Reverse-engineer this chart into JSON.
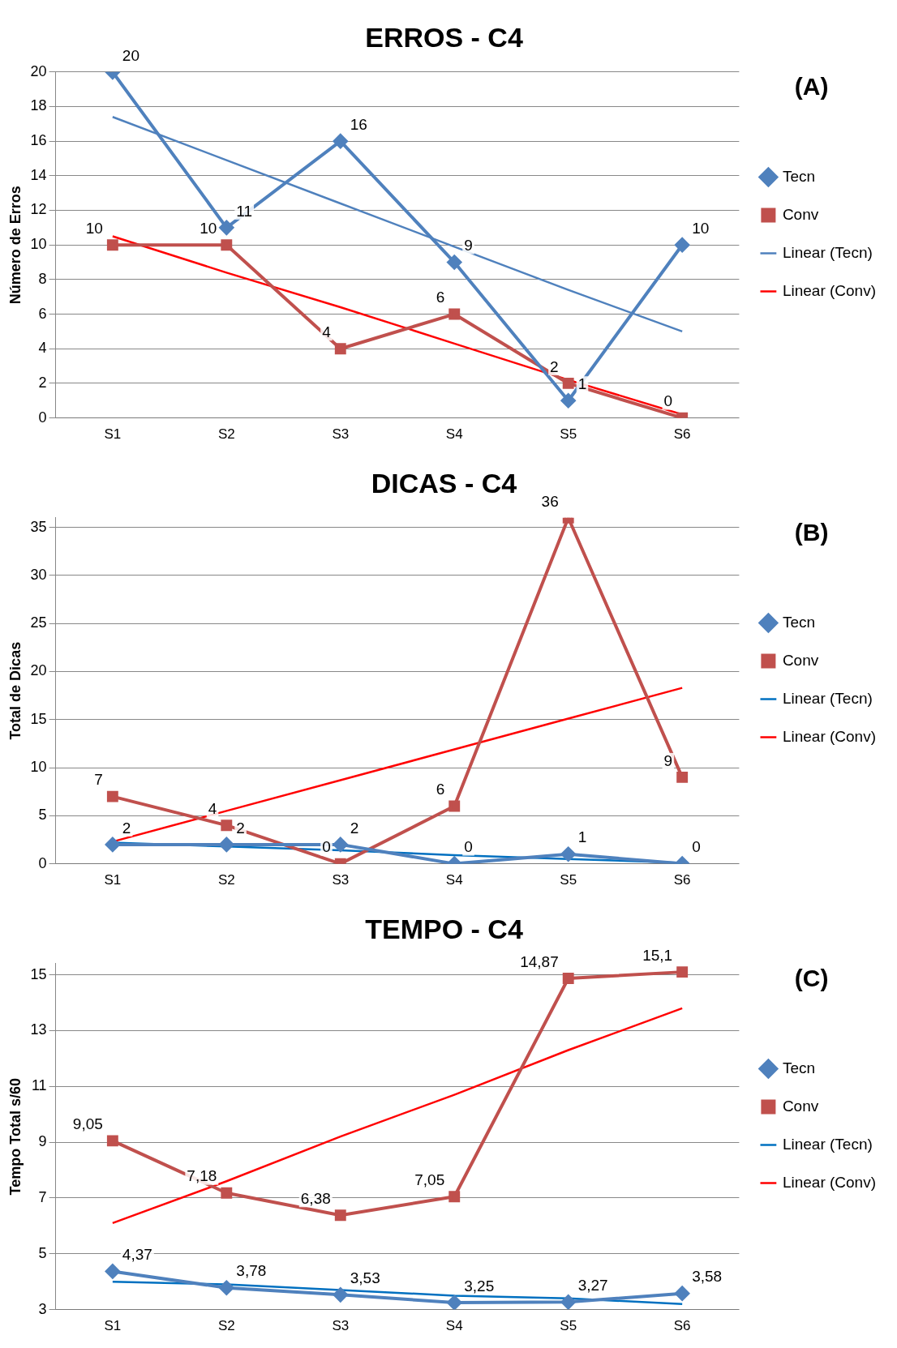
{
  "chart_data": [
    {
      "type": "line",
      "title": "ERROS - C4",
      "ylabel": "Número de Erros",
      "categories": [
        "S1",
        "S2",
        "S3",
        "S4",
        "S5",
        "S6"
      ],
      "ylim": [
        0,
        20
      ],
      "yticks": [
        0,
        2,
        4,
        6,
        8,
        10,
        12,
        14,
        16,
        18,
        20
      ],
      "grid": "y",
      "legend": "right",
      "annotations": [
        "(A)"
      ],
      "series": [
        {
          "name": "Tecn",
          "color": "#4f81bd",
          "marker": "diamond",
          "values": [
            20,
            11,
            16,
            9,
            1,
            10
          ],
          "value_labels": [
            "20",
            "11",
            "16",
            "9",
            "1",
            "10"
          ]
        },
        {
          "name": "Conv",
          "color": "#c0504d",
          "marker": "square",
          "values": [
            10,
            10,
            4,
            6,
            2,
            0
          ],
          "value_labels": [
            "10",
            "10",
            "4",
            "6",
            "2",
            "0"
          ]
        },
        {
          "name": "Linear (Tecn)",
          "color": "#4f81bd",
          "marker": "none",
          "values": [
            17.4,
            14.9,
            12.4,
            9.9,
            7.4,
            5.0
          ]
        },
        {
          "name": "Linear (Conv)",
          "color": "#ff0000",
          "marker": "none",
          "values": [
            10.5,
            8.4,
            6.4,
            4.3,
            2.2,
            0.2
          ]
        }
      ]
    },
    {
      "type": "line",
      "title": "DICAS - C4",
      "ylabel": "Total de Dicas",
      "categories": [
        "S1",
        "S2",
        "S3",
        "S4",
        "S5",
        "S6"
      ],
      "ylim": [
        0,
        36
      ],
      "yticks": [
        0,
        5,
        10,
        15,
        20,
        25,
        30,
        35
      ],
      "grid": "y",
      "legend": "right",
      "annotations": [
        "(B)"
      ],
      "series": [
        {
          "name": "Tecn",
          "color": "#4f81bd",
          "marker": "diamond",
          "values": [
            2,
            2,
            2,
            0,
            1,
            0
          ],
          "value_labels": [
            "2",
            "2",
            "2",
            "0",
            "1",
            "0"
          ]
        },
        {
          "name": "Conv",
          "color": "#c0504d",
          "marker": "square",
          "values": [
            7,
            4,
            0,
            6,
            36,
            9
          ],
          "value_labels": [
            "7",
            "4",
            "0",
            "6",
            "36",
            "9"
          ]
        },
        {
          "name": "Linear (Tecn)",
          "color": "#0070c0",
          "marker": "none",
          "values": [
            2.2,
            1.8,
            1.4,
            0.9,
            0.5,
            0.1
          ]
        },
        {
          "name": "Linear (Conv)",
          "color": "#ff0000",
          "marker": "none",
          "values": [
            2.3,
            5.5,
            8.7,
            11.9,
            15.1,
            18.3
          ]
        }
      ]
    },
    {
      "type": "line",
      "title": "TEMPO - C4",
      "ylabel": "Tempo Total s/60",
      "categories": [
        "S1",
        "S2",
        "S3",
        "S4",
        "S5",
        "S6"
      ],
      "ylim": [
        3,
        15.4
      ],
      "yticks": [
        3,
        5,
        7,
        9,
        11,
        13,
        15
      ],
      "grid": "y",
      "legend": "right",
      "annotations": [
        "(C)"
      ],
      "series": [
        {
          "name": "Tecn",
          "color": "#4f81bd",
          "marker": "diamond",
          "values": [
            4.37,
            3.78,
            3.53,
            3.25,
            3.27,
            3.58
          ],
          "value_labels": [
            "4,37",
            "3,78",
            "3,53",
            "3,25",
            "3,27",
            "3,58"
          ]
        },
        {
          "name": "Conv",
          "color": "#c0504d",
          "marker": "square",
          "values": [
            9.05,
            7.18,
            6.38,
            7.05,
            14.87,
            15.1
          ],
          "value_labels": [
            "9,05",
            "7,18",
            "6,38",
            "7,05",
            "14,87",
            "15,1"
          ]
        },
        {
          "name": "Linear (Tecn)",
          "color": "#0070c0",
          "marker": "none",
          "values": [
            4.0,
            3.9,
            3.7,
            3.5,
            3.4,
            3.2
          ]
        },
        {
          "name": "Linear (Conv)",
          "color": "#ff0000",
          "marker": "none",
          "values": [
            6.1,
            7.6,
            9.2,
            10.7,
            12.3,
            13.8
          ]
        }
      ]
    }
  ]
}
